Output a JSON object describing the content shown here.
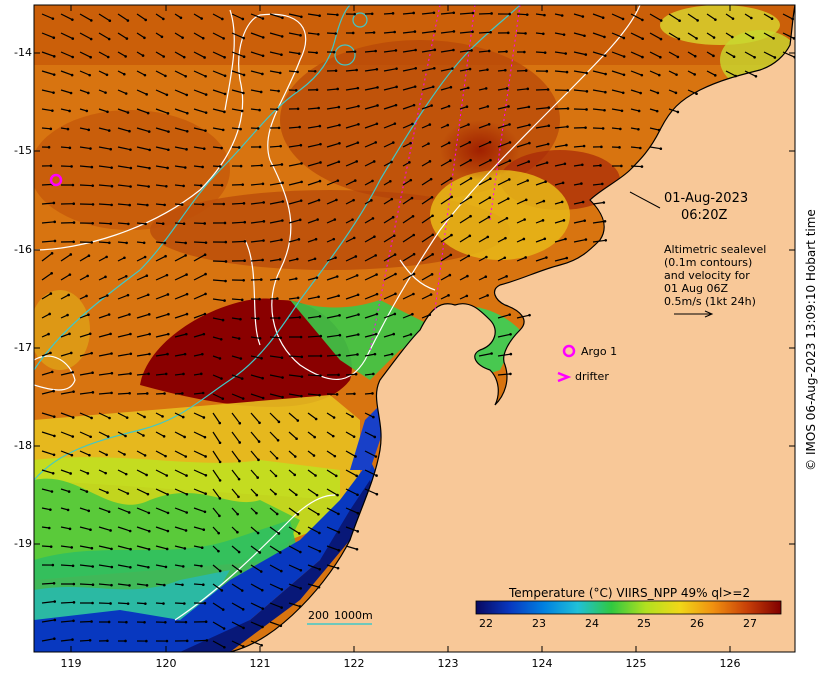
{
  "map": {
    "axis": {
      "lat_ticks": [
        "-14",
        "-15",
        "-16",
        "-17",
        "-18",
        "-19"
      ],
      "lon_ticks": [
        "119",
        "120",
        "121",
        "122",
        "123",
        "124",
        "125",
        "126"
      ]
    },
    "datetime": {
      "date": "01-Aug-2023",
      "time": "06:20Z"
    },
    "altimetry_note": [
      "Altimetric sealevel",
      "(0.1m contours)",
      "and velocity for",
      "01 Aug 06Z",
      "0.5m/s (1kt 24h)"
    ],
    "legend": {
      "argo_label": "Argo 1",
      "drifter_label": "drifter"
    },
    "isobaths": {
      "label_200": "200",
      "label_1000": "1000m",
      "color": "#40c8c8"
    },
    "colorbar": {
      "title": "Temperature (°C) VIIRS_NPP 49% ql>=2",
      "ticks": [
        "22",
        "23",
        "24",
        "25",
        "26",
        "27"
      ],
      "colormap": [
        "#080860",
        "#0838c0",
        "#0080e0",
        "#20c0d8",
        "#30c840",
        "#b0e020",
        "#f0d818",
        "#f09010",
        "#c84008",
        "#800000"
      ]
    },
    "credit": "© IMOS 06-Aug-2023 13:09:10 Hobart time",
    "land_color": "#f8c898",
    "marker_color": "#ff00ff"
  }
}
